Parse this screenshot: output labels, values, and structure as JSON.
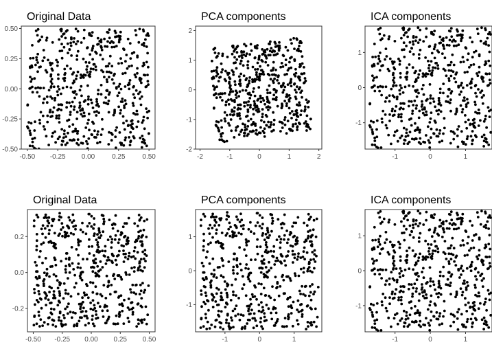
{
  "chart_data": [
    {
      "type": "scatter",
      "title": "Original Data",
      "xlim": [
        -0.55,
        0.55
      ],
      "ylim": [
        -0.5,
        0.52
      ],
      "xticks": [
        -0.5,
        -0.25,
        0.0,
        0.25,
        0.5
      ],
      "xtick_labels": [
        "-0.50",
        "-0.25",
        "0.00",
        "0.25",
        "0.50"
      ],
      "yticks": [
        -0.5,
        -0.25,
        0.0,
        0.25,
        0.5
      ],
      "ytick_labels": [
        "-0.50",
        "-0.25",
        "0.00",
        "0.25",
        "0.50"
      ],
      "n_points": 550,
      "x_range": [
        -0.5,
        0.5
      ],
      "y_range": [
        -0.5,
        0.5
      ],
      "grid": false,
      "seed": 11
    },
    {
      "type": "scatter",
      "title": "PCA components",
      "xlim": [
        -2.15,
        2.1
      ],
      "ylim": [
        -2.0,
        2.15
      ],
      "xticks": [
        -2,
        -1,
        0,
        1,
        2
      ],
      "xtick_labels": [
        "-2",
        "-1",
        "0",
        "1",
        "2"
      ],
      "yticks": [
        -2,
        -1,
        0,
        1,
        2
      ],
      "ytick_labels": [
        "-2",
        "-1",
        "0",
        "1",
        "2"
      ],
      "n_points": 550,
      "shape": "rotated-square",
      "grid": false,
      "seed": 11
    },
    {
      "type": "scatter",
      "title": "ICA components",
      "xlim": [
        -1.85,
        1.75
      ],
      "ylim": [
        -1.75,
        1.75
      ],
      "xticks": [
        -1,
        0,
        1
      ],
      "xtick_labels": [
        "-1",
        "0",
        "1"
      ],
      "yticks": [
        -1,
        0,
        1
      ],
      "ytick_labels": [
        "-1",
        "0",
        "1"
      ],
      "n_points": 550,
      "x_range": [
        -1.72,
        1.72
      ],
      "y_range": [
        -1.72,
        1.72
      ],
      "grid": false,
      "seed": 11
    },
    {
      "type": "scatter",
      "title": "Original Data",
      "xlim": [
        -0.55,
        0.55
      ],
      "ylim": [
        -0.33,
        0.35
      ],
      "xticks": [
        -0.5,
        -0.25,
        0.0,
        0.25,
        0.5
      ],
      "xtick_labels": [
        "-0.50",
        "-0.25",
        "0.00",
        "0.25",
        "0.50"
      ],
      "yticks": [
        -0.2,
        0.0,
        0.2
      ],
      "ytick_labels": [
        "-0.2",
        "0.0",
        "0.2"
      ],
      "n_points": 550,
      "x_range": [
        -0.5,
        0.5
      ],
      "y_range": [
        -0.3,
        0.33
      ],
      "grid": false,
      "seed": 29
    },
    {
      "type": "scatter",
      "title": "PCA components",
      "xlim": [
        -1.85,
        1.8
      ],
      "ylim": [
        -1.8,
        1.8
      ],
      "xticks": [
        -1,
        0,
        1
      ],
      "xtick_labels": [
        "-1",
        "0",
        "1"
      ],
      "yticks": [
        -1,
        0,
        1
      ],
      "ytick_labels": [
        "-1",
        "0",
        "1"
      ],
      "n_points": 550,
      "x_range": [
        -1.72,
        1.72
      ],
      "y_range": [
        -1.72,
        1.72
      ],
      "grid": false,
      "seed": 29
    },
    {
      "type": "scatter",
      "title": "ICA components",
      "xlim": [
        -1.85,
        1.75
      ],
      "ylim": [
        -1.75,
        1.75
      ],
      "xticks": [
        -1,
        0,
        1
      ],
      "xtick_labels": [
        "-1",
        "0",
        "1"
      ],
      "yticks": [
        -1,
        0,
        1
      ],
      "ytick_labels": [
        "-1",
        "0",
        "1"
      ],
      "n_points": 550,
      "x_range": [
        -1.72,
        1.72
      ],
      "y_range": [
        -1.72,
        1.72
      ],
      "grid": false,
      "seed": 11
    }
  ]
}
